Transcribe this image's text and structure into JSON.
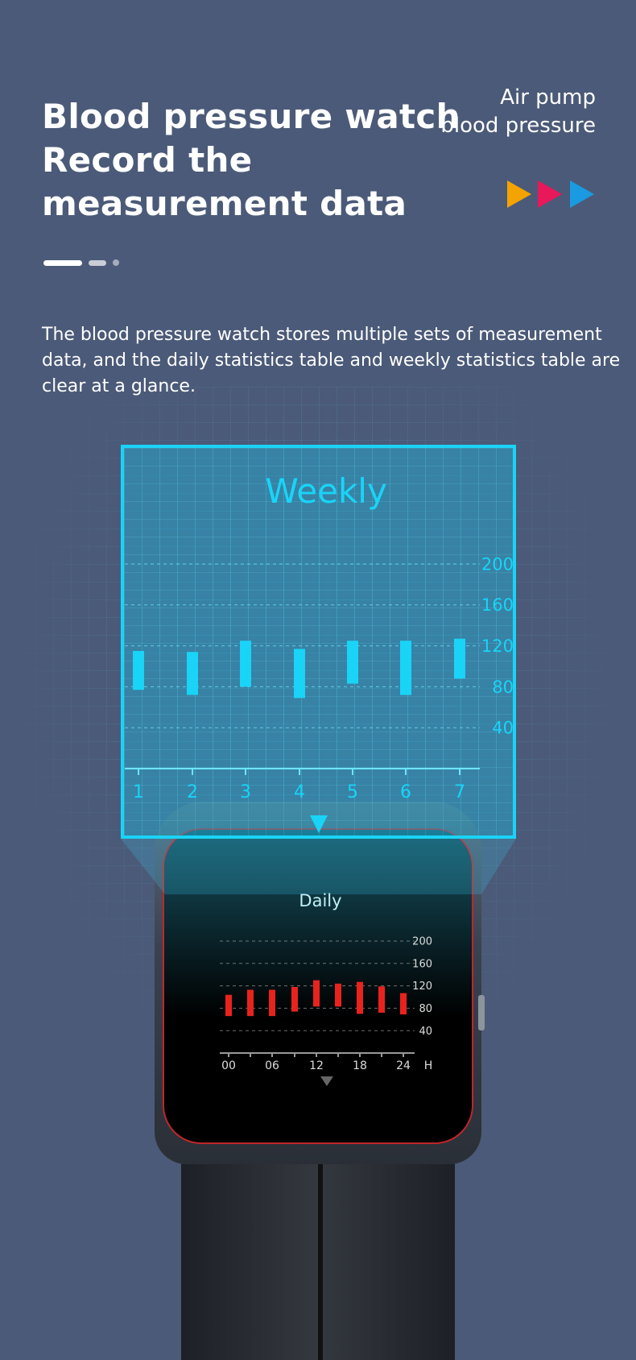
{
  "header": {
    "title_lines": [
      "Blood pressure watch",
      "Record the",
      "measurement data"
    ],
    "subtitle_lines": [
      "Air pump",
      "blood pressure"
    ],
    "arrow_colors": [
      "#f5a300",
      "#e8185a",
      "#1a9ae0"
    ],
    "carousel": {
      "count": 3,
      "active": 1
    }
  },
  "description": "The blood pressure watch stores multiple sets of measurement data, and the daily statistics table and weekly statistics table are clear at a glance.",
  "chart_data": [
    {
      "type": "bar",
      "title": "Weekly",
      "categories": [
        "1",
        "2",
        "3",
        "4",
        "5",
        "6",
        "7"
      ],
      "series": [
        {
          "high": [
            115,
            114,
            125,
            117,
            125,
            125,
            127
          ],
          "low": [
            77,
            72,
            80,
            69,
            83,
            72,
            88
          ]
        }
      ],
      "yticks": [
        "200",
        "160",
        "120",
        "80",
        "40"
      ],
      "ylim": [
        0,
        210
      ],
      "grid": true,
      "color": "#19d4f7"
    },
    {
      "type": "bar",
      "title": "Daily",
      "categories": [
        "00",
        "03",
        "06",
        "09",
        "12",
        "15",
        "18",
        "21",
        "24"
      ],
      "xtick_labels": [
        "00",
        "06",
        "12",
        "18",
        "24"
      ],
      "xunit": "H",
      "series": [
        {
          "high": [
            104,
            113,
            113,
            118,
            130,
            124,
            127,
            119,
            107
          ],
          "low": [
            66,
            66,
            66,
            74,
            83,
            83,
            70,
            72,
            69
          ]
        }
      ],
      "yticks": [
        "200",
        "160",
        "120",
        "80",
        "40"
      ],
      "ylim": [
        0,
        210
      ],
      "grid": true,
      "color": "#e8231e"
    }
  ]
}
